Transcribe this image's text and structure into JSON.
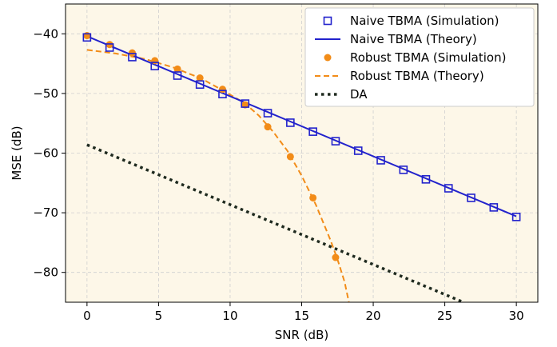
{
  "chart_data": {
    "type": "line",
    "xlabel": "SNR (dB)",
    "ylabel": "MSE (dB)",
    "xlim": [
      -1.5,
      31.5
    ],
    "ylim": [
      -85,
      -35
    ],
    "xticks": [
      0,
      5,
      10,
      15,
      20,
      25,
      30
    ],
    "yticks": [
      -40,
      -50,
      -60,
      -70,
      -80
    ],
    "xtick_labels": [
      "0",
      "5",
      "10",
      "15",
      "20",
      "25",
      "30"
    ],
    "ytick_labels": [
      "−40",
      "−50",
      "−60",
      "−70",
      "−80"
    ],
    "grid": true,
    "legend_position": "top-right",
    "series": [
      {
        "name": "Naive TBMA (Simulation)",
        "style": "markers-square-open",
        "color": "#2222cc",
        "x": [
          0,
          1.58,
          3.16,
          4.74,
          6.32,
          7.89,
          9.47,
          11.05,
          12.63,
          14.21,
          15.79,
          17.37,
          18.95,
          20.53,
          22.11,
          23.68,
          25.26,
          26.84,
          28.42,
          30
        ],
        "y": [
          -40.6,
          -42.3,
          -43.9,
          -45.4,
          -47.0,
          -48.5,
          -50.1,
          -51.7,
          -53.3,
          -54.9,
          -56.4,
          -58.0,
          -59.6,
          -61.2,
          -62.8,
          -64.4,
          -65.9,
          -67.5,
          -69.1,
          -70.7
        ]
      },
      {
        "name": "Naive TBMA (Theory)",
        "style": "line-solid",
        "color": "#2222cc",
        "x": [
          0,
          30
        ],
        "y": [
          -40.4,
          -70.6
        ]
      },
      {
        "name": "Robust TBMA (Simulation)",
        "style": "markers-circle-filled",
        "color": "#f28c18",
        "x": [
          0,
          1.58,
          3.16,
          4.74,
          6.32,
          7.89,
          9.47,
          11.05,
          12.63,
          14.21,
          15.79,
          17.37
        ],
        "y": [
          -40.3,
          -41.8,
          -43.2,
          -44.5,
          -45.9,
          -47.4,
          -49.3,
          -51.9,
          -55.6,
          -60.6,
          -67.5,
          -77.5
        ]
      },
      {
        "name": "Robust TBMA (Theory)",
        "style": "line-dashed",
        "color": "#f28c18",
        "x": [
          0,
          2,
          4,
          6,
          8,
          9.5,
          11,
          12,
          13,
          14,
          15,
          16,
          17,
          17.5,
          18,
          18.3
        ],
        "y": [
          -42.7,
          -43.3,
          -44.2,
          -45.6,
          -47.5,
          -49.5,
          -51.6,
          -53.7,
          -56.4,
          -59.6,
          -63.8,
          -68.7,
          -74.5,
          -77.8,
          -81.6,
          -85
        ]
      },
      {
        "name": "DA",
        "style": "line-dotted",
        "color": "#1f2a1f",
        "x": [
          0,
          26.3
        ],
        "y": [
          -58.6,
          -85
        ]
      }
    ]
  },
  "colors": {
    "plot_background": "#fdf7e8",
    "grid": "#cfcfcf"
  }
}
